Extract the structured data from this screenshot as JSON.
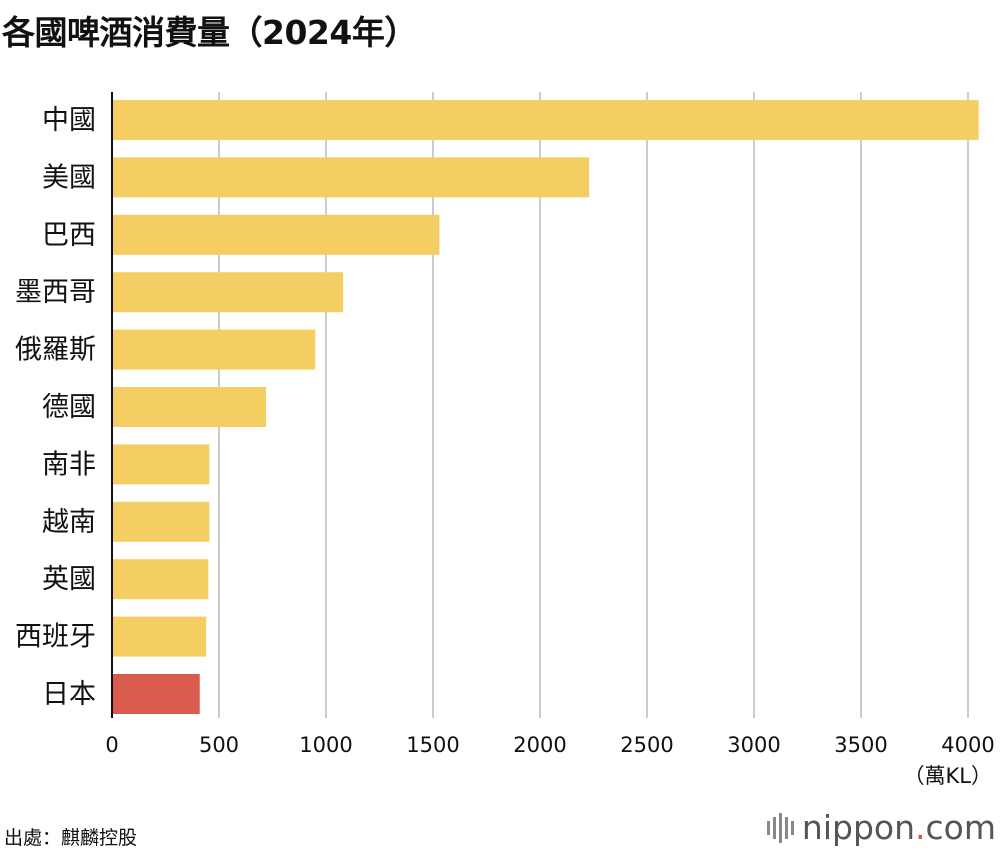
{
  "title": "各國啤酒消費量（2024年）",
  "source": "出處：麒麟控股",
  "brand": {
    "name": "nippon",
    "dot": ".",
    "tld": "com"
  },
  "colors": {
    "bar": "#F4CE62",
    "highlight": "#D95B4E",
    "grid": "#CCCCCC",
    "axis": "#111111"
  },
  "chart_data": {
    "type": "bar",
    "orientation": "horizontal",
    "categories": [
      "中國",
      "美國",
      "巴西",
      "墨西哥",
      "俄羅斯",
      "德國",
      "南非",
      "越南",
      "英國",
      "西班牙",
      "日本"
    ],
    "values": [
      4050,
      2230,
      1530,
      1080,
      950,
      720,
      455,
      455,
      450,
      440,
      410
    ],
    "highlight": "日本",
    "xlim": [
      0,
      4000
    ],
    "xticks": [
      "0",
      "500",
      "1000",
      "1500",
      "2000",
      "2500",
      "3000",
      "3500",
      "4000"
    ],
    "unit": "（萬KL）",
    "grid": true
  }
}
